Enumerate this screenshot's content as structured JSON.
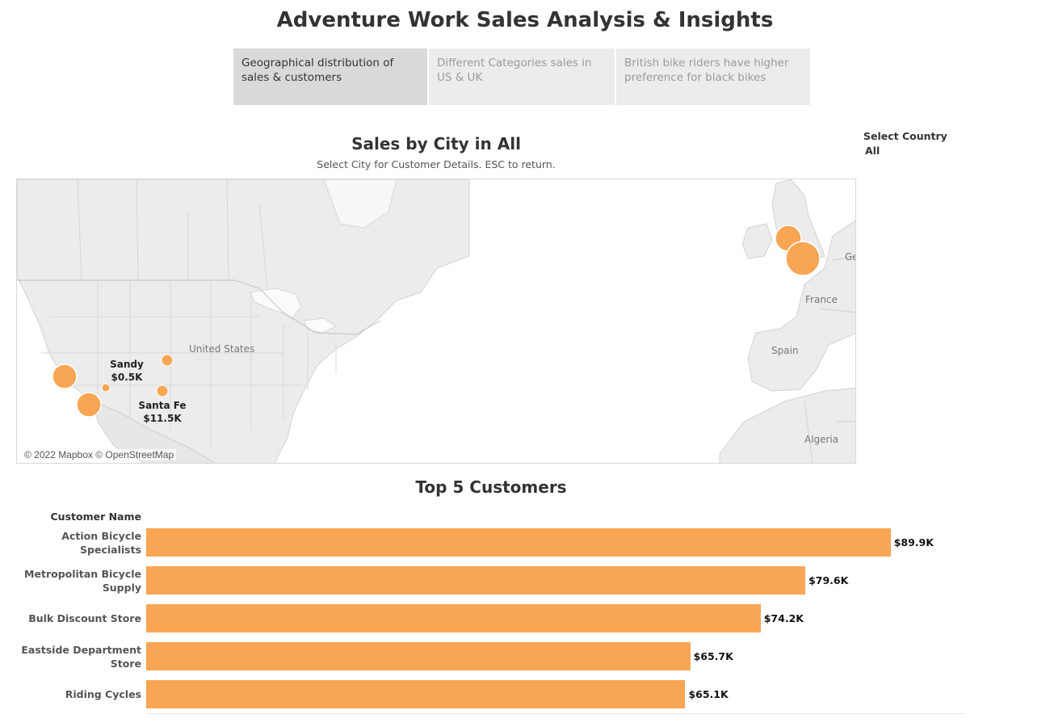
{
  "header": {
    "title": "Adventure Work Sales Analysis & Insights"
  },
  "tabs": [
    {
      "label": "Geographical distribution of sales & customers",
      "active": true
    },
    {
      "label": "Different Categories sales in US & UK",
      "active": false
    },
    {
      "label": "British bike riders have higher preference for black bikes",
      "active": false
    }
  ],
  "map": {
    "title": "Sales by City in All",
    "subtitle": "Select City for Customer Details. ESC to return.",
    "attribution": "© 2022 Mapbox © OpenStreetMap",
    "geo_labels": {
      "us": "United States",
      "france": "France",
      "spain": "Spain",
      "algeria": "Algeria",
      "germany": "Ge"
    },
    "city_labels": [
      {
        "name": "Sandy",
        "value": "$0.5K"
      },
      {
        "name": "Santa Fe",
        "value": "$11.5K"
      }
    ],
    "marker_color": "#f8a653"
  },
  "filter": {
    "label": "Select Country",
    "value": "All"
  },
  "chart_data": {
    "type": "bar",
    "title": "Top 5 Customers",
    "category_header": "Customer Name",
    "categories": [
      "Action Bicycle Specialists",
      "Metropolitan Bicycle Supply",
      "Bulk Discount Store",
      "Eastside Department Store",
      "Riding Cycles"
    ],
    "values": [
      89.9,
      79.6,
      74.2,
      65.7,
      65.1
    ],
    "value_labels": [
      "$89.9K",
      "$79.6K",
      "$74.2K",
      "$65.7K",
      "$65.1K"
    ],
    "unit": "$K",
    "color": "#f8a653",
    "xlim": [
      0,
      99
    ]
  }
}
